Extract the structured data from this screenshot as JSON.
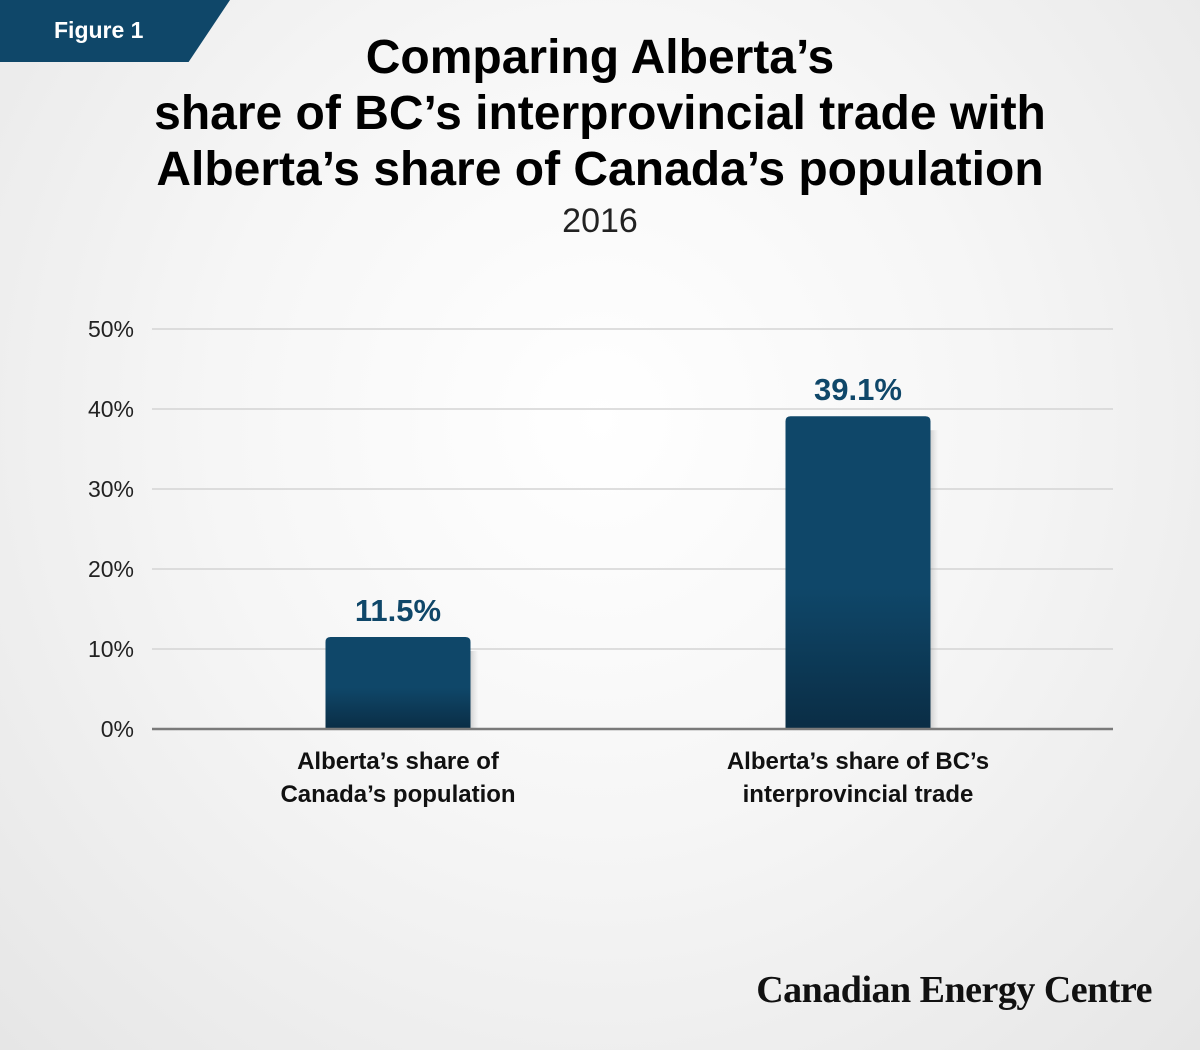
{
  "figure_label": "Figure 1",
  "brand": "Canadian Energy Centre",
  "colors": {
    "bar_top": "#0f4769",
    "bar_bottom": "#0a2d45",
    "label": "#0f4769",
    "grid": "#d4d4d4",
    "axis": "#7a7a7a"
  },
  "chart_data": {
    "type": "bar",
    "title_lines": [
      "Comparing Alberta’s",
      "share of BC’s interprovincial trade with",
      "Alberta’s share of Canada’s population"
    ],
    "subtitle": "2016",
    "categories": [
      [
        "Alberta’s share of",
        "Canada’s population"
      ],
      [
        "Alberta’s share of BC’s",
        "interprovincial trade"
      ]
    ],
    "values": [
      11.5,
      39.1
    ],
    "data_labels": [
      "11.5%",
      "39.1%"
    ],
    "ylim": [
      0,
      50
    ],
    "yticks": [
      {
        "value": 0,
        "label": "0%"
      },
      {
        "value": 10,
        "label": "10%"
      },
      {
        "value": 20,
        "label": "20%"
      },
      {
        "value": 30,
        "label": "30%"
      },
      {
        "value": 40,
        "label": "40%"
      },
      {
        "value": 50,
        "label": "50%"
      }
    ],
    "grid": true,
    "legend": "none"
  }
}
